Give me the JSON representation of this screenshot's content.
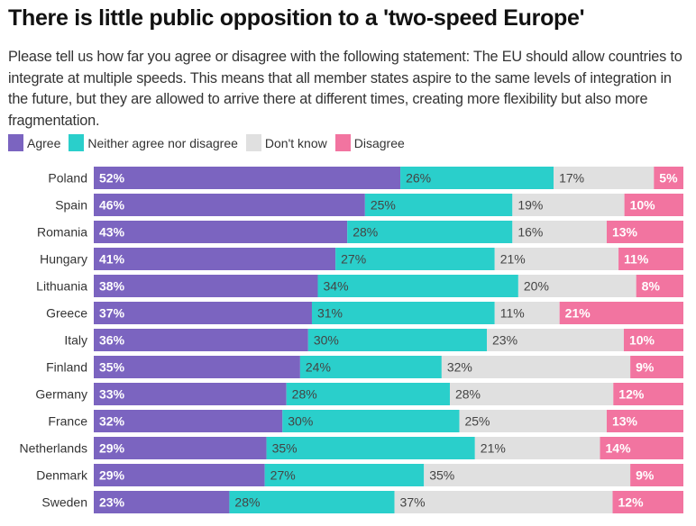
{
  "chart_data": {
    "type": "bar",
    "orientation": "horizontal",
    "stacked": true,
    "title": "There is little public opposition to a 'two-speed Europe'",
    "subtitle": "Please tell us how far you agree or disagree with the following statement: The EU should allow countries to integrate at multiple speeds. This means that all member states aspire to the same levels of integration in the future, but they are allowed to arrive there at different times, creating more flexibility but also more fragmentation.",
    "xlabel": "",
    "ylabel": "",
    "legend_position": "top-left",
    "categories": [
      "Poland",
      "Spain",
      "Romania",
      "Hungary",
      "Lithuania",
      "Greece",
      "Italy",
      "Finland",
      "Germany",
      "France",
      "Netherlands",
      "Denmark",
      "Sweden"
    ],
    "series": [
      {
        "name": "Agree",
        "color": "#7b64c0",
        "label_style": "light",
        "values": [
          52,
          46,
          43,
          41,
          38,
          37,
          36,
          35,
          33,
          32,
          29,
          29,
          23
        ]
      },
      {
        "name": "Neither agree nor disagree",
        "color": "#2acfcb",
        "label_style": "dark",
        "values": [
          26,
          25,
          28,
          27,
          34,
          31,
          30,
          24,
          28,
          30,
          35,
          27,
          28
        ]
      },
      {
        "name": "Don't know",
        "color": "#e0e0e0",
        "label_style": "dark",
        "values": [
          17,
          19,
          16,
          21,
          20,
          11,
          23,
          32,
          28,
          25,
          21,
          35,
          37
        ]
      },
      {
        "name": "Disagree",
        "color": "#f274a0",
        "label_style": "light",
        "values": [
          5,
          10,
          13,
          11,
          8,
          21,
          10,
          9,
          12,
          13,
          14,
          9,
          12
        ]
      }
    ],
    "value_suffix": "%"
  }
}
